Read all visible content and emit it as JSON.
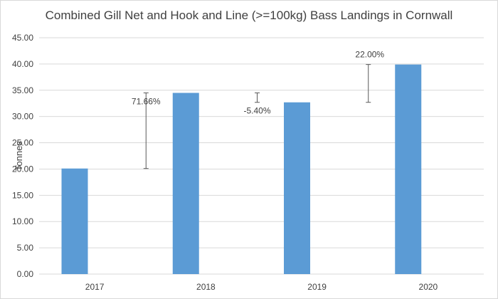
{
  "chart_data": {
    "type": "bar",
    "title": "Combined Gill Net and Hook and Line (>=100kg) Bass Landings in Cornwall",
    "xlabel": "",
    "ylabel": "Tonnes",
    "ylim": [
      0,
      45
    ],
    "ytick_step": 5,
    "ytick_labels": [
      "0.00",
      "5.00",
      "10.00",
      "15.00",
      "20.00",
      "25.00",
      "30.00",
      "35.00",
      "40.00",
      "45.00"
    ],
    "categories": [
      "2017",
      "2018",
      "2019",
      "2020"
    ],
    "values": [
      20.1,
      34.5,
      32.7,
      39.9
    ],
    "bar_color": "#5b9bd5",
    "grid": true,
    "grid_color": "#d9d9d9",
    "legend": "none",
    "annotations": [
      {
        "text": "71.66%",
        "from": 20.1,
        "to": 34.5
      },
      {
        "text": "-5.40%",
        "from": 32.7,
        "to": 34.5
      },
      {
        "text": "22.00%",
        "from": 32.7,
        "to": 39.9
      }
    ]
  }
}
